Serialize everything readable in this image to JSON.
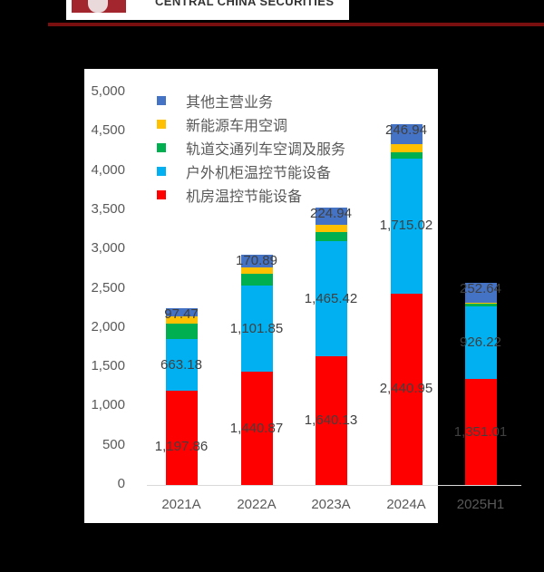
{
  "header": {
    "logo_text": "CENTRAL CHINA SECURITIES",
    "accent_line_color": "#7a0f10"
  },
  "colors": {
    "other": "#4472c4",
    "ev_ac": "#ffc000",
    "rail": "#00b050",
    "outdoor": "#00b0f0",
    "room": "#ff0000"
  },
  "legend": [
    {
      "key": "other",
      "label": "其他主营业务"
    },
    {
      "key": "ev_ac",
      "label": "新能源车用空调"
    },
    {
      "key": "rail",
      "label": "轨道交通列车空调及服务"
    },
    {
      "key": "outdoor",
      "label": "户外机柜温控节能设备"
    },
    {
      "key": "room",
      "label": "机房温控节能设备"
    }
  ],
  "yaxis": {
    "ticks": [
      "5,000",
      "4,500",
      "4,000",
      "3,500",
      "3,000",
      "2,500",
      "2,000",
      "1,500",
      "1,000",
      "500",
      "0"
    ]
  },
  "chart_data": {
    "type": "bar",
    "stacked": true,
    "title": "",
    "xlabel": "",
    "ylabel": "",
    "ylim": [
      0,
      5000
    ],
    "yticks": [
      0,
      500,
      1000,
      1500,
      2000,
      2500,
      3000,
      3500,
      4000,
      4500,
      5000
    ],
    "grid": false,
    "legend_position": "top-left inside",
    "categories": [
      "2021A",
      "2022A",
      "2023A",
      "2024A",
      "2025H1"
    ],
    "series": [
      {
        "name": "机房温控节能设备",
        "color": "#ff0000",
        "values": [
          1197.86,
          1440.87,
          1640.13,
          2440.95,
          1351.01
        ],
        "labels": [
          "1,197.86",
          "1,440.87",
          "1,640.13",
          "2,440.95",
          "1,351.01"
        ]
      },
      {
        "name": "户外机柜温控节能设备",
        "color": "#00b0f0",
        "values": [
          663.18,
          1101.85,
          1465.42,
          1715.02,
          926.22
        ],
        "labels": [
          "663.18",
          "1,101.85",
          "1,465.42",
          "1,715.02",
          "926.22"
        ]
      },
      {
        "name": "轨道交通列车空调及服务",
        "color": "#00b050",
        "values": [
          200,
          150,
          120,
          80,
          30
        ],
        "labels": [
          "",
          "",
          "",
          "",
          ""
        ]
      },
      {
        "name": "新能源车用空调",
        "color": "#ffc000",
        "values": [
          90,
          75,
          85,
          110,
          15
        ],
        "labels": [
          "",
          "",
          "",
          "",
          ""
        ]
      },
      {
        "name": "其他主营业务",
        "color": "#4472c4",
        "values": [
          97.47,
          170.89,
          224.94,
          246.94,
          252.64
        ],
        "labels": [
          "97.47",
          "170.89",
          "224.94",
          "246.94",
          "252.64"
        ]
      }
    ]
  }
}
